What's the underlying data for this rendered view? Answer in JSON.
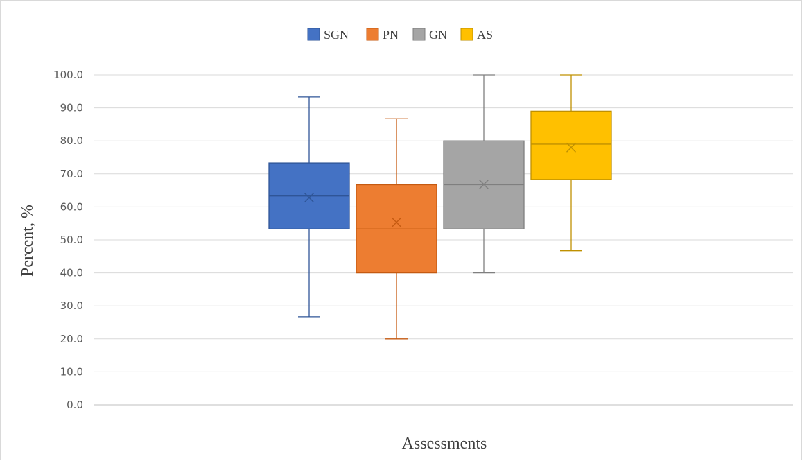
{
  "chart_data": {
    "type": "boxplot",
    "xlabel": "Assessments",
    "ylabel": "Percent, %",
    "ylim": [
      0,
      100
    ],
    "ytick_step": 10,
    "grid": true,
    "legend_position": "top-center",
    "series": [
      {
        "name": "SGN",
        "color": "#4472C4",
        "stroke": "#2F5597",
        "min": 26.7,
        "q1": 53.3,
        "median": 63.3,
        "q3": 73.3,
        "max": 93.3,
        "mean": 62.8
      },
      {
        "name": "PN",
        "color": "#ED7D31",
        "stroke": "#C55A11",
        "min": 20.0,
        "q1": 40.0,
        "median": 53.3,
        "q3": 66.7,
        "max": 86.7,
        "mean": 55.3
      },
      {
        "name": "GN",
        "color": "#A5A5A5",
        "stroke": "#7F7F7F",
        "min": 40.0,
        "q1": 53.3,
        "median": 66.7,
        "q3": 80.0,
        "max": 100.0,
        "mean": 66.8
      },
      {
        "name": "AS",
        "color": "#FFC000",
        "stroke": "#BF9000",
        "min": 46.7,
        "q1": 68.3,
        "median": 79.0,
        "q3": 89.0,
        "max": 100.0,
        "mean": 78.0
      }
    ]
  }
}
